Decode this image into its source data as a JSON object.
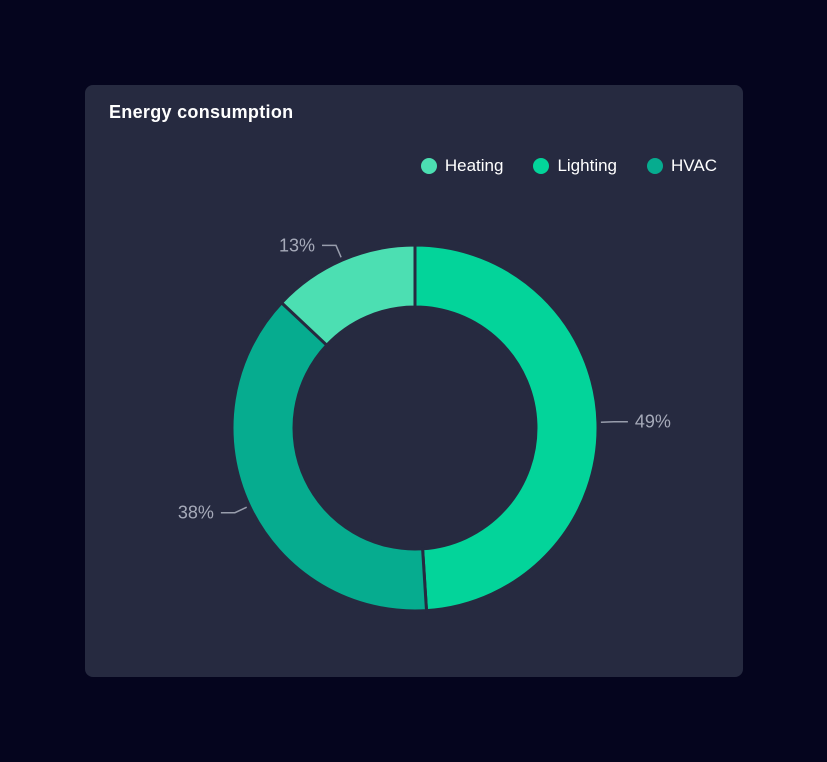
{
  "page": {
    "background": "#05051E"
  },
  "card": {
    "background": "#262A40"
  },
  "chart_data": {
    "type": "pie",
    "title": "Energy consumption",
    "donut": true,
    "slices": [
      {
        "label": "Heating",
        "value": 13,
        "display": "13%",
        "color": "#4CDFB2"
      },
      {
        "label": "Lighting",
        "value": 49,
        "display": "49%",
        "color": "#03D49A"
      },
      {
        "label": "HVAC",
        "value": 38,
        "display": "38%",
        "color": "#06AC8F"
      }
    ],
    "layout": {
      "legend_position": "top-right",
      "legend_order": [
        "Heating",
        "Lighting",
        "HVAC"
      ],
      "start_slice": "Lighting",
      "clockwise": true,
      "start_angle_deg": 0,
      "inner_radius_ratio": 0.66,
      "label_color": "#A6AAB9",
      "leader_line_color": "#989DAC",
      "separator_color": "#262A40",
      "title_color": "#FFFFFF",
      "legend_text_color": "#FFFFFF"
    }
  }
}
